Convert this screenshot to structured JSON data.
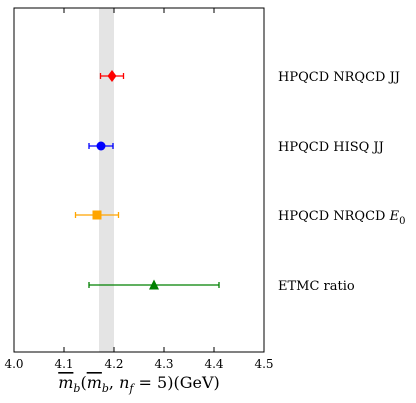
{
  "chart_data": {
    "type": "scatter",
    "x_range": [
      4.0,
      4.5
    ],
    "x_ticks": [
      "4.0",
      "4.1",
      "4.2",
      "4.3",
      "4.4",
      "4.5"
    ],
    "x_tick_values": [
      4.0,
      4.1,
      4.2,
      4.3,
      4.4,
      4.5
    ],
    "xlabel": "m̄_b(m̄_b, n_f = 5)(GeV)",
    "band": {
      "from": 4.17,
      "to": 4.2,
      "color": "#e4e4e4"
    },
    "series": [
      {
        "label": "HPQCD NRQCD JJ",
        "label_suffix": "",
        "value": 4.196,
        "err_minus": 0.023,
        "err_plus": 0.023,
        "marker": "diamond",
        "color": "#ff0000"
      },
      {
        "label": "HPQCD HISQ JJ",
        "label_suffix": "",
        "value": 4.174,
        "err_minus": 0.024,
        "err_plus": 0.024,
        "marker": "circle",
        "color": "#0000ff"
      },
      {
        "label": "HPQCD NRQCD ",
        "label_suffix": "E0",
        "value": 4.166,
        "err_minus": 0.043,
        "err_plus": 0.043,
        "marker": "square",
        "color": "#ffa500"
      },
      {
        "label": "ETMC ratio",
        "label_suffix": "",
        "value": 4.28,
        "err_minus": 0.13,
        "err_plus": 0.13,
        "marker": "triangle",
        "color": "#008000"
      }
    ]
  }
}
